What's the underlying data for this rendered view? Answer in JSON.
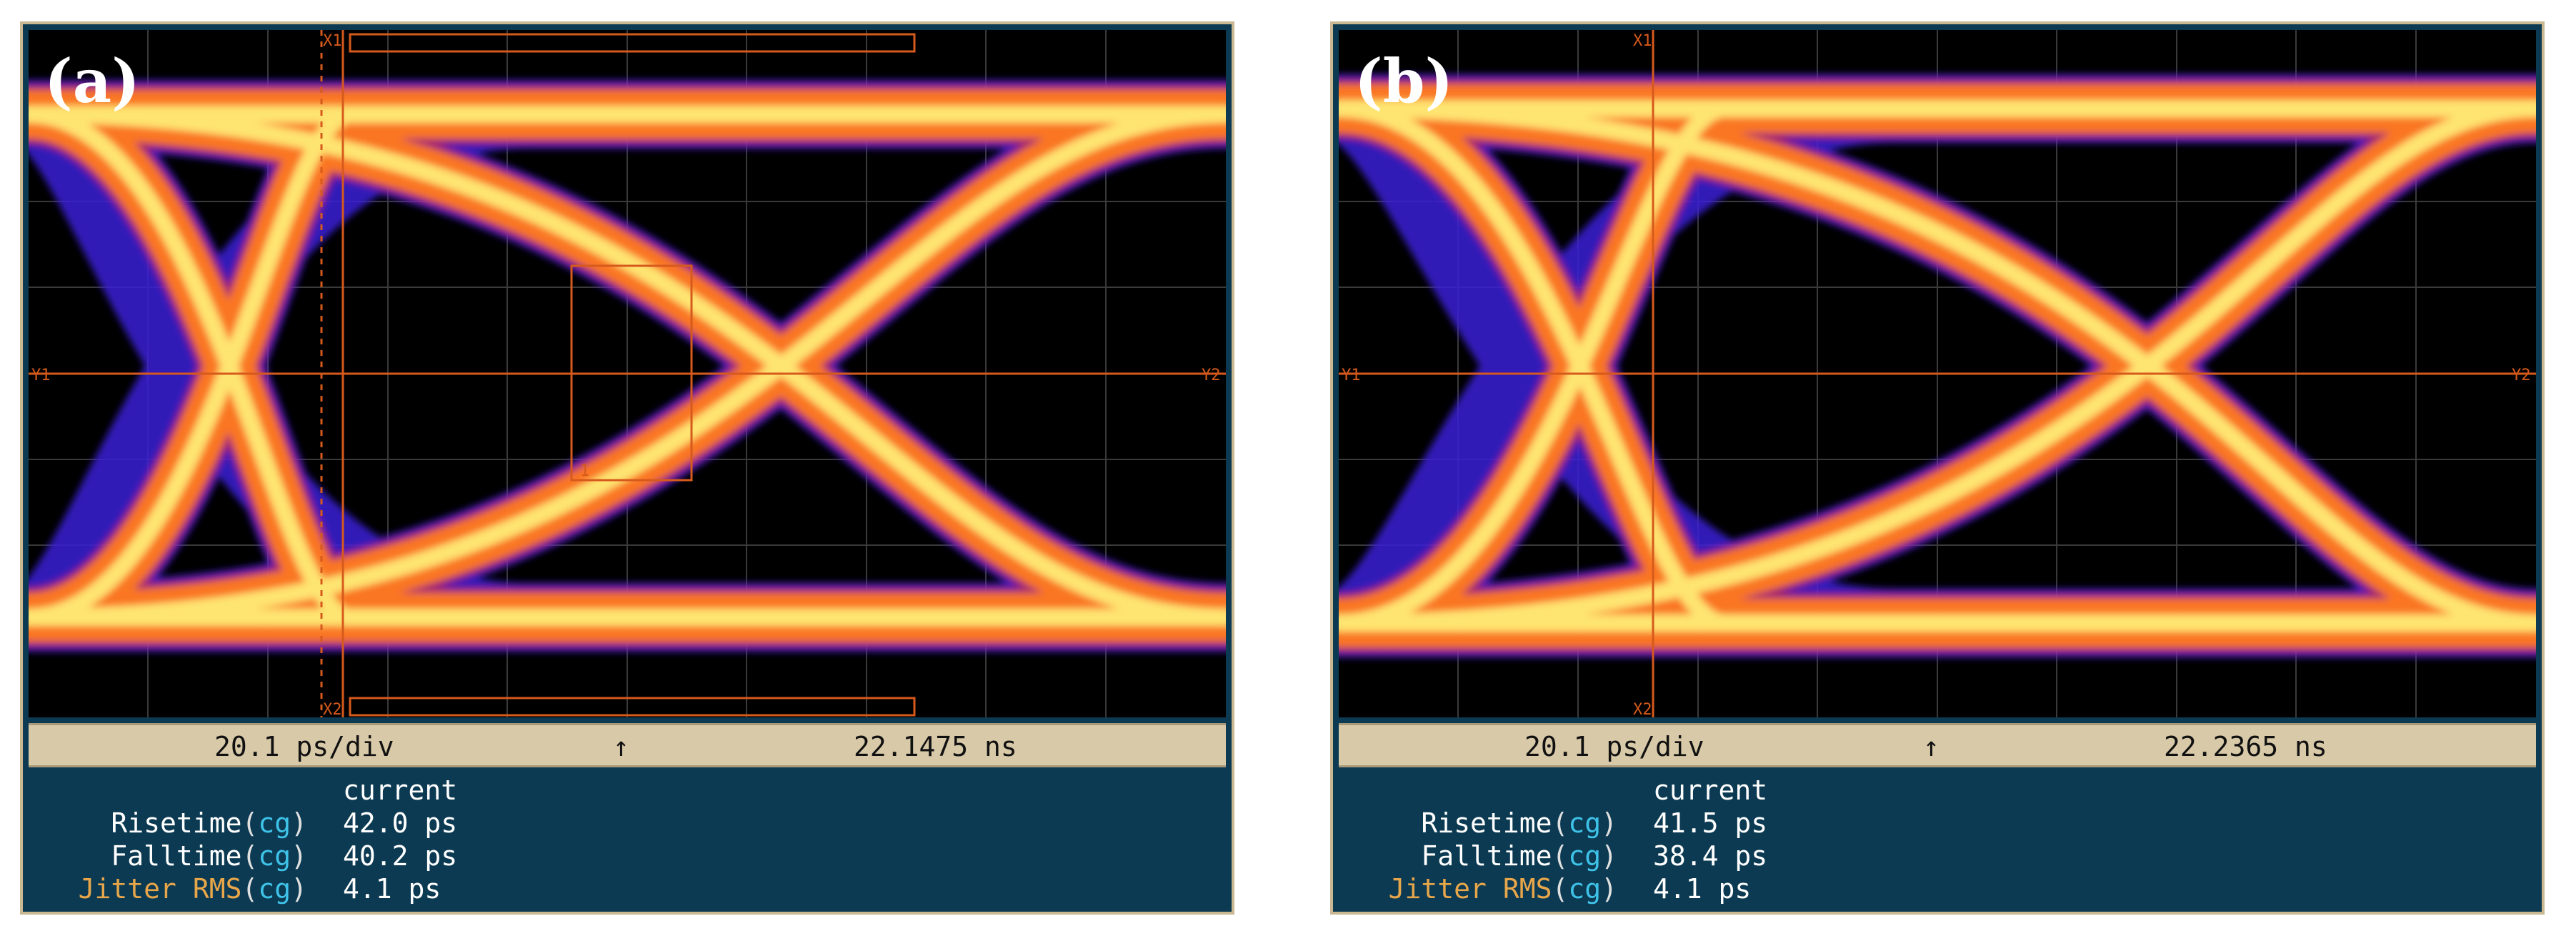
{
  "colors": {
    "trace_hot": "#fff07a",
    "trace_mid": "#ff7b1f",
    "trace_cool": "#b0206a",
    "trace_edge": "#3a22d8",
    "screen_bg": "#000000",
    "marker": "#d65a1c",
    "status_bar": "#d8c9a8",
    "readout_bg": "#0b3a52",
    "cg_text": "#3fc2e8"
  },
  "panels": [
    {
      "label": "(a)",
      "markers": {
        "x1": "X1",
        "x2": "X2",
        "y1": "Y1",
        "y2": "Y2",
        "mask": "1"
      },
      "status": {
        "scale": "20.1 ps/div",
        "arrow": "↑",
        "position": "22.1475 ns"
      },
      "measurements": {
        "header": "current",
        "rows": [
          {
            "name": "Risetime",
            "qual": "cg",
            "value": "42.0 ps",
            "kind": "normal"
          },
          {
            "name": "Falltime",
            "qual": "cg",
            "value": "40.2 ps",
            "kind": "normal"
          },
          {
            "name": "Jitter RMS",
            "qual": "cg",
            "value": "4.1 ps",
            "kind": "jitter"
          }
        ]
      }
    },
    {
      "label": "(b)",
      "markers": {
        "x1": "X1",
        "x2": "X2",
        "y1": "Y1",
        "y2": "Y2"
      },
      "status": {
        "scale": "20.1 ps/div",
        "arrow": "↑",
        "position": "22.2365 ns"
      },
      "measurements": {
        "header": "current",
        "rows": [
          {
            "name": "Risetime",
            "qual": "cg",
            "value": "41.5 ps",
            "kind": "normal"
          },
          {
            "name": "Falltime",
            "qual": "cg",
            "value": "38.4 ps",
            "kind": "normal"
          },
          {
            "name": "Jitter RMS",
            "qual": "cg",
            "value": "4.1 ps",
            "kind": "jitter"
          }
        ]
      }
    }
  ]
}
